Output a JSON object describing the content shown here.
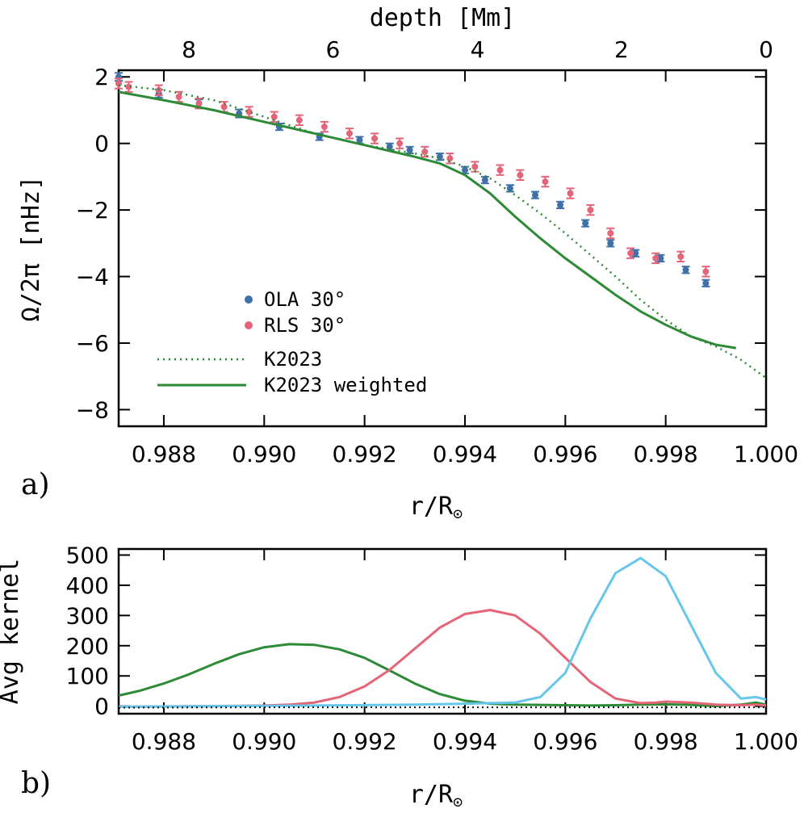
{
  "chart_data": [
    {
      "type": "scatter",
      "panel_label": "a)",
      "xlabel_main": "r/R",
      "xlabel_sub": "⊙",
      "ylabel": "Ω/2π [nHz]",
      "top_axis_label": "depth [Mm]",
      "xlim": [
        0.9871,
        1.0
      ],
      "ylim": [
        -8.5,
        2.2
      ],
      "x_ticks": [
        "0.988",
        "0.990",
        "0.992",
        "0.994",
        "0.996",
        "0.998",
        "1.000"
      ],
      "x_tick_values": [
        0.988,
        0.99,
        0.992,
        0.994,
        0.996,
        0.998,
        1.0
      ],
      "y_ticks": [
        "2",
        "0",
        "−2",
        "−4",
        "−6",
        "−8"
      ],
      "y_tick_values": [
        2,
        0,
        -2,
        -4,
        -6,
        -8
      ],
      "top_ticks": [
        "8",
        "6",
        "4",
        "2",
        "0"
      ],
      "top_tick_values": [
        8,
        6,
        4,
        2,
        0
      ],
      "top_tick_r": [
        0.9885,
        0.99137,
        0.99425,
        0.99712,
        1.0
      ],
      "legend_position": "bottom-left",
      "series": [
        {
          "name": "OLA 30°",
          "marker": "dot",
          "color": "#3f70a8",
          "x": [
            0.9871,
            0.9879,
            0.9887,
            0.9895,
            0.9903,
            0.9911,
            0.9919,
            0.9925,
            0.9929,
            0.9935,
            0.994,
            0.9944,
            0.9949,
            0.9954,
            0.9959,
            0.9964,
            0.9969,
            0.9974,
            0.9979,
            0.9984,
            0.9988
          ],
          "y": [
            2.0,
            1.5,
            1.2,
            0.9,
            0.5,
            0.2,
            0.1,
            -0.1,
            -0.2,
            -0.4,
            -0.8,
            -1.1,
            -1.35,
            -1.55,
            -1.85,
            -2.4,
            -3.0,
            -3.3,
            -3.45,
            -3.8,
            -4.2
          ],
          "err": [
            0.12,
            0.12,
            0.12,
            0.12,
            0.1,
            0.1,
            0.1,
            0.1,
            0.1,
            0.1,
            0.1,
            0.1,
            0.1,
            0.1,
            0.1,
            0.1,
            0.1,
            0.1,
            0.1,
            0.1,
            0.1
          ]
        },
        {
          "name": "RLS 30°",
          "marker": "dot",
          "color": "#e46478",
          "x": [
            0.9871,
            0.9873,
            0.9879,
            0.9883,
            0.9887,
            0.9892,
            0.9897,
            0.9902,
            0.9907,
            0.9912,
            0.9917,
            0.9922,
            0.9927,
            0.9932,
            0.9937,
            0.9942,
            0.9947,
            0.9951,
            0.9956,
            0.9961,
            0.9965,
            0.9969,
            0.9973,
            0.9978,
            0.9983,
            0.9988
          ],
          "y": [
            1.8,
            1.7,
            1.6,
            1.4,
            1.2,
            1.1,
            0.95,
            0.8,
            0.7,
            0.5,
            0.3,
            0.15,
            0.0,
            -0.25,
            -0.45,
            -0.7,
            -0.8,
            -0.95,
            -1.15,
            -1.5,
            -2.0,
            -2.7,
            -3.3,
            -3.45,
            -3.4,
            -3.85
          ],
          "err": [
            0.15,
            0.15,
            0.15,
            0.15,
            0.15,
            0.15,
            0.15,
            0.15,
            0.15,
            0.15,
            0.15,
            0.15,
            0.15,
            0.15,
            0.15,
            0.15,
            0.15,
            0.15,
            0.15,
            0.15,
            0.15,
            0.15,
            0.15,
            0.15,
            0.15,
            0.15
          ]
        },
        {
          "name": "K2023",
          "marker": "dotted-line",
          "color": "#2d8a36",
          "x": [
            0.9871,
            0.988,
            0.989,
            0.99,
            0.991,
            0.992,
            0.993,
            0.9935,
            0.994,
            0.9945,
            0.995,
            0.9955,
            0.996,
            0.9965,
            0.997,
            0.9975,
            0.998,
            0.9985,
            0.999,
            0.9995,
            1.0
          ],
          "y": [
            1.75,
            1.6,
            1.3,
            0.8,
            0.3,
            -0.05,
            -0.3,
            -0.45,
            -0.7,
            -1.05,
            -1.55,
            -2.1,
            -2.7,
            -3.35,
            -4.0,
            -4.7,
            -5.3,
            -5.8,
            -6.1,
            -6.5,
            -7.05
          ]
        },
        {
          "name": "K2023 weighted",
          "marker": "solid-line",
          "color": "#2d8a36",
          "x": [
            0.9871,
            0.988,
            0.989,
            0.99,
            0.991,
            0.992,
            0.993,
            0.9935,
            0.994,
            0.9945,
            0.995,
            0.9955,
            0.996,
            0.9965,
            0.997,
            0.9975,
            0.998,
            0.9985,
            0.999,
            0.9994
          ],
          "y": [
            1.55,
            1.3,
            1.0,
            0.65,
            0.3,
            -0.05,
            -0.4,
            -0.6,
            -0.95,
            -1.5,
            -2.2,
            -2.85,
            -3.45,
            -4.0,
            -4.55,
            -5.05,
            -5.45,
            -5.8,
            -6.05,
            -6.15
          ]
        }
      ]
    },
    {
      "type": "line",
      "panel_label": "b)",
      "xlabel_main": "r/R",
      "xlabel_sub": "⊙",
      "ylabel": "Avg kernel",
      "xlim": [
        0.9871,
        1.0
      ],
      "ylim": [
        -25,
        520
      ],
      "x_ticks": [
        "0.988",
        "0.990",
        "0.992",
        "0.994",
        "0.996",
        "0.998",
        "1.000"
      ],
      "x_tick_values": [
        0.988,
        0.99,
        0.992,
        0.994,
        0.996,
        0.998,
        1.0
      ],
      "y_ticks": [
        "500",
        "400",
        "300",
        "200",
        "100",
        "0"
      ],
      "y_tick_values": [
        500,
        400,
        300,
        200,
        100,
        0
      ],
      "series": [
        {
          "color": "#2d8a36",
          "x": [
            0.9871,
            0.9875,
            0.988,
            0.9885,
            0.989,
            0.9895,
            0.99,
            0.9905,
            0.991,
            0.9915,
            0.992,
            0.9925,
            0.993,
            0.9935,
            0.994,
            0.9945,
            0.995,
            0.9955,
            0.996,
            0.9965,
            0.997,
            0.9975,
            0.998,
            0.9985,
            0.999,
            0.9995,
            0.9998,
            1.0
          ],
          "y": [
            35,
            50,
            75,
            105,
            140,
            172,
            195,
            205,
            203,
            188,
            160,
            118,
            75,
            40,
            18,
            8,
            5,
            4,
            3,
            2,
            3,
            5,
            6,
            4,
            0,
            5,
            12,
            5
          ]
        },
        {
          "color": "#e46478",
          "x": [
            0.9871,
            0.988,
            0.989,
            0.99,
            0.9905,
            0.991,
            0.9915,
            0.992,
            0.9925,
            0.993,
            0.9935,
            0.994,
            0.9945,
            0.995,
            0.9955,
            0.996,
            0.9965,
            0.997,
            0.9975,
            0.9978,
            0.998,
            0.9985,
            0.999,
            0.9995,
            0.9998,
            1.0
          ],
          "y": [
            -2,
            -1,
            0,
            2,
            5,
            12,
            30,
            65,
            120,
            190,
            260,
            305,
            318,
            300,
            240,
            160,
            80,
            25,
            10,
            12,
            15,
            12,
            5,
            3,
            5,
            2
          ]
        },
        {
          "color": "#66c6ea",
          "x": [
            0.9871,
            0.989,
            0.991,
            0.993,
            0.994,
            0.995,
            0.9955,
            0.996,
            0.9965,
            0.997,
            0.9975,
            0.998,
            0.9985,
            0.999,
            0.9995,
            0.9998,
            1.0
          ],
          "y": [
            -2,
            0,
            2,
            5,
            8,
            12,
            30,
            110,
            290,
            440,
            490,
            430,
            270,
            110,
            25,
            30,
            22
          ]
        },
        {
          "color": "#111111",
          "dash": "2,4",
          "x": [
            0.9871,
            0.99,
            0.993,
            0.996,
            0.999,
            1.0
          ],
          "y": [
            -5,
            -4,
            -4,
            -4,
            -4,
            -4
          ]
        }
      ]
    }
  ]
}
